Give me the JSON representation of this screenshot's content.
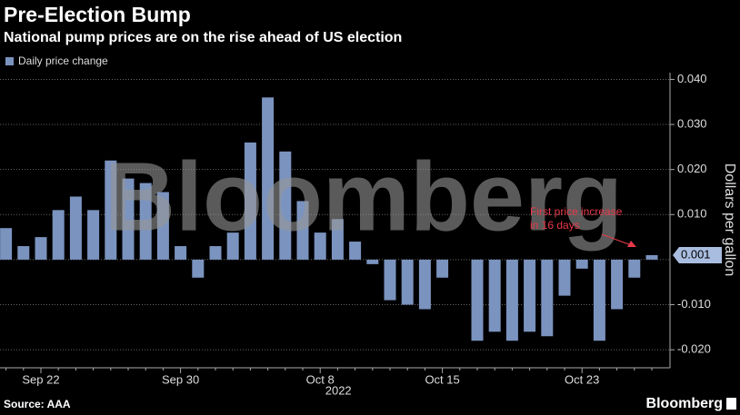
{
  "chart_data": {
    "type": "bar",
    "title": "Pre-Election Bump",
    "subtitle": "National pump prices are on the rise ahead of US election",
    "legend": "Daily price change",
    "y_axis_label": "Dollars per gallon",
    "source": "Source: AAA",
    "brand": "Bloomberg",
    "watermark": "Bloomberg",
    "year_label": "2022",
    "annotation": [
      "First price increase",
      "in 16 days"
    ],
    "color": "#7b93bf",
    "categories": [
      null,
      null,
      "Sep 22",
      null,
      null,
      null,
      null,
      null,
      null,
      null,
      "Sep 30",
      null,
      null,
      null,
      null,
      null,
      null,
      null,
      "Oct 8",
      null,
      null,
      null,
      null,
      null,
      null,
      "Oct 15",
      null,
      null,
      null,
      null,
      null,
      null,
      null,
      "Oct 23",
      null,
      null,
      null,
      null
    ],
    "values": [
      0.007,
      0.003,
      0.005,
      0.011,
      0.014,
      0.011,
      0.022,
      0.018,
      0.017,
      0.015,
      0.003,
      -0.004,
      0.003,
      0.006,
      0.026,
      0.036,
      0.024,
      0.013,
      0.006,
      0.009,
      0.004,
      -0.001,
      -0.009,
      -0.01,
      -0.011,
      -0.004,
      0,
      -0.018,
      -0.016,
      -0.018,
      -0.016,
      -0.017,
      -0.008,
      -0.002,
      -0.018,
      -0.011,
      -0.004,
      0.001
    ],
    "value_labels": [
      null,
      null,
      null,
      null,
      null,
      null,
      null,
      null,
      null,
      null,
      null,
      null,
      null,
      null,
      null,
      null,
      null,
      null,
      null,
      null,
      null,
      null,
      null,
      null,
      null,
      null,
      null,
      null,
      null,
      null,
      null,
      null,
      null,
      null,
      null,
      null,
      null,
      "0.001"
    ],
    "ylim": [
      -0.024,
      0.0415
    ],
    "yticks": [
      {
        "value": -0.02,
        "label": "-0.020"
      },
      {
        "value": -0.01,
        "label": "-0.010"
      },
      {
        "value": 0.01,
        "label": "0.010"
      },
      {
        "value": 0.02,
        "label": "0.020"
      },
      {
        "value": 0.03,
        "label": "0.030"
      },
      {
        "value": 0.04,
        "label": "0.040"
      }
    ],
    "grid": true
  }
}
